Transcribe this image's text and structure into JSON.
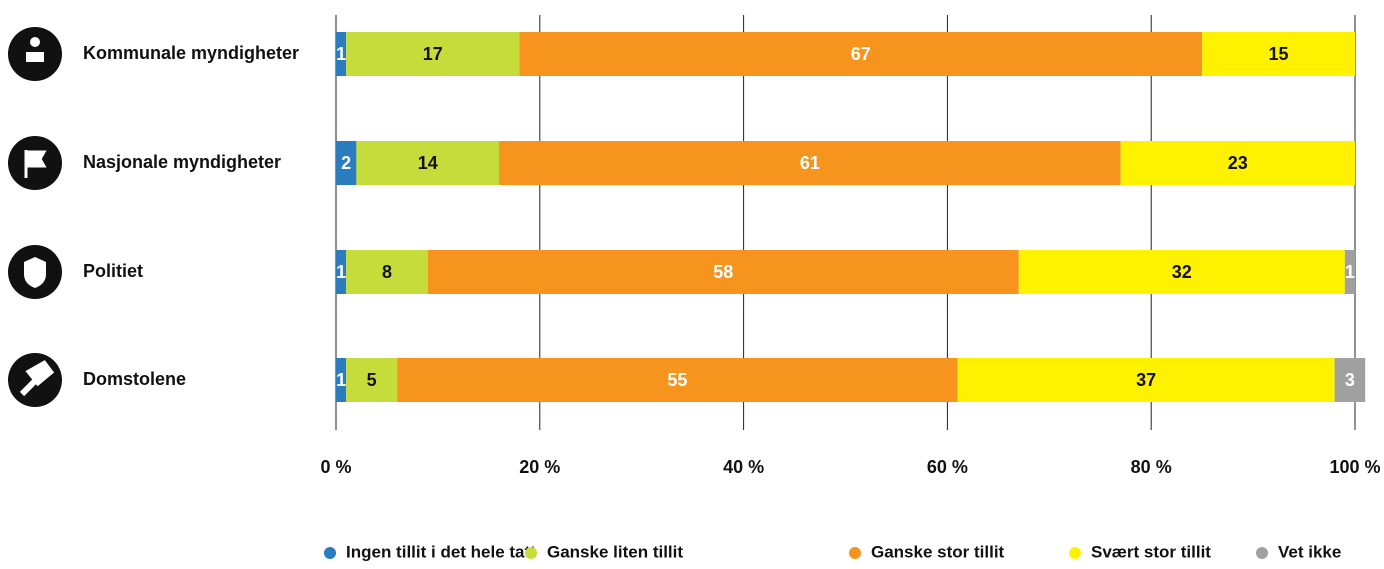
{
  "chart_data": {
    "type": "stacked-barh",
    "categories": [
      "Kommunale myndigheter",
      "Nasjonale myndigheter",
      "Politiet",
      "Domstolene"
    ],
    "series": [
      {
        "name": "Ingen tillit i det hele tatt",
        "color": "#2b7bbf",
        "values": [
          1,
          2,
          1,
          1
        ]
      },
      {
        "name": "Ganske liten tillit",
        "color": "#c5dc3a",
        "values": [
          17,
          14,
          8,
          5
        ]
      },
      {
        "name": "Ganske stor tillit",
        "color": "#f7941d",
        "values": [
          67,
          61,
          58,
          55
        ]
      },
      {
        "name": "Svært stor tillit",
        "color": "#fff200",
        "values": [
          15,
          23,
          32,
          37
        ]
      },
      {
        "name": "Vet ikke",
        "color": "#a0a0a0",
        "values": [
          null,
          null,
          1,
          3
        ]
      }
    ],
    "xlim": [
      0,
      100
    ],
    "xticks": [
      {
        "value": 0,
        "label": "0 %"
      },
      {
        "value": 20,
        "label": "20 %"
      },
      {
        "value": 40,
        "label": "40 %"
      },
      {
        "value": 60,
        "label": "60 %"
      },
      {
        "value": 80,
        "label": "80 %"
      },
      {
        "value": 100,
        "label": "100 %"
      }
    ],
    "grid": true,
    "legend": "bottom"
  }
}
